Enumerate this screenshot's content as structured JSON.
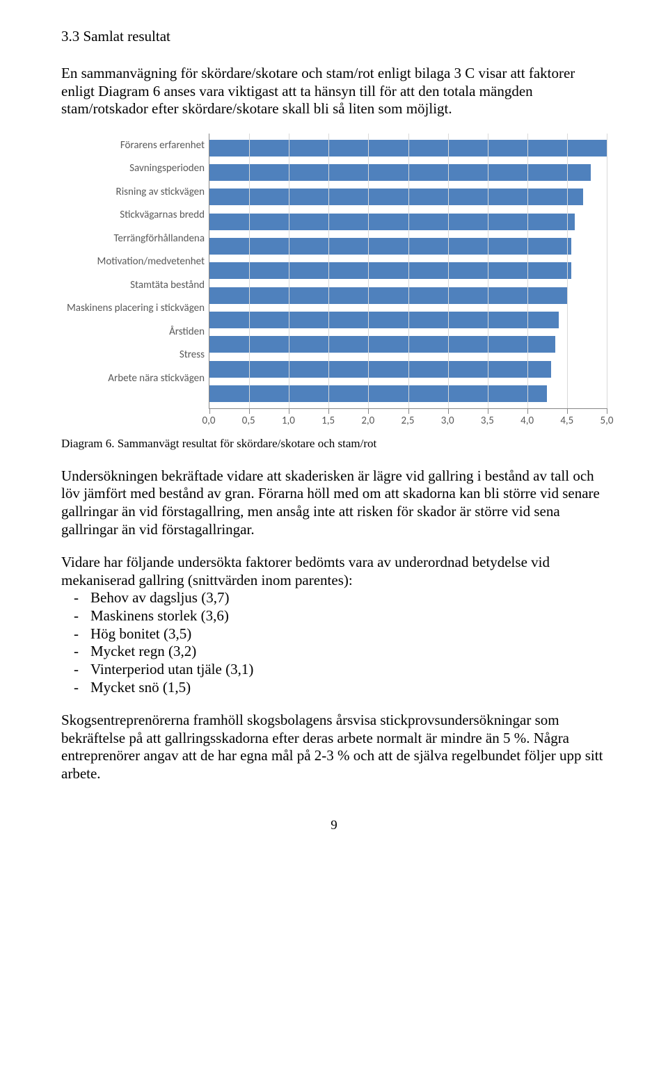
{
  "section_title": "3.3 Samlat resultat",
  "intro_para": "En sammanvägning för skördare/skotare och stam/rot enligt bilaga 3 C visar att faktorer enligt Diagram 6 anses vara viktigast att ta hänsyn till för att den totala mängden stam/rotskador efter skördare/skotare skall bli så liten som möjligt.",
  "chart": {
    "type": "bar_horizontal",
    "xlim": [
      0.0,
      5.0
    ],
    "xtick_step": 0.5,
    "xticks": [
      "0,0",
      "0,5",
      "1,0",
      "1,5",
      "2,0",
      "2,5",
      "3,0",
      "3,5",
      "4,0",
      "4,5",
      "5,0"
    ],
    "bar_color": "#4f81bd",
    "grid_color": "#d9d9d9",
    "axis_color": "#868686",
    "text_color": "#595959",
    "background_color": "#ffffff",
    "label_fontsize": 15,
    "categories": [
      "Förarens erfarenhet",
      "Savningsperioden",
      "Risning av stickvägen",
      "Stickvägarnas bredd",
      "Terrängförhållandena",
      "Motivation/medvetenhet",
      "Stamtäta bestånd",
      "Maskinens placering i stickvägen",
      "Årstiden",
      "Stress",
      "Arbete nära stickvägen"
    ],
    "values": [
      5.0,
      4.8,
      4.7,
      4.6,
      4.55,
      4.55,
      4.5,
      4.4,
      4.35,
      4.3,
      4.25
    ]
  },
  "caption": "Diagram 6. Sammanvägt resultat för skördare/skotare och stam/rot",
  "para2": "Undersökningen bekräftade vidare att skaderisken är lägre vid gallring i bestånd av tall och löv jämfört med bestånd av gran. Förarna höll med om att skadorna kan bli större vid senare gallringar än vid förstagallring, men ansåg inte att risken för skador är större vid sena gallringar än vid förstagallringar.",
  "para3_lead": "Vidare har följande undersökta faktorer bedömts vara av underordnad betydelse vid mekaniserad gallring (snittvärden inom parentes):",
  "factors": [
    "Behov av dagsljus (3,7)",
    "Maskinens storlek (3,6)",
    "Hög bonitet (3,5)",
    "Mycket regn (3,2)",
    "Vinterperiod utan tjäle (3,1)",
    "Mycket snö (1,5)"
  ],
  "para4": "Skogsentreprenörerna framhöll skogsbolagens årsvisa stickprovsundersökningar som bekräftelse på att gallringsskadorna efter deras arbete normalt är mindre än 5 %. Några entreprenörer angav att de har egna mål på 2-3 % och att de själva regelbundet följer upp sitt arbete.",
  "page_number": "9"
}
